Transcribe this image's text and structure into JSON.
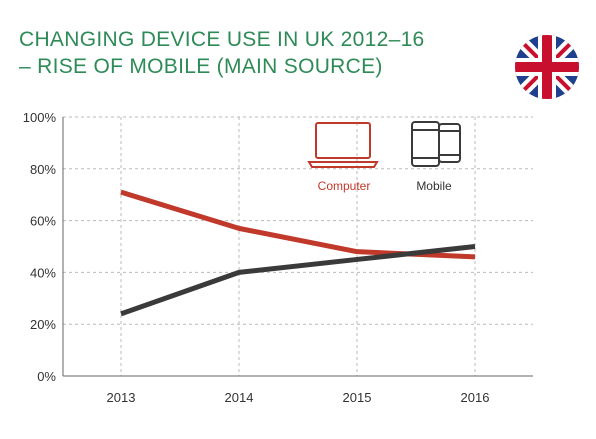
{
  "title": {
    "line1": "CHANGING DEVICE USE IN UK 2012–16",
    "line2": "– RISE OF MOBILE (MAIN SOURCE)"
  },
  "flag_icon": "uk-flag-icon",
  "colors": {
    "title": "#2e8b57",
    "computer": "#c0392b",
    "mobile": "#3a3a3a",
    "grid": "#bbbbbb"
  },
  "chart_data": {
    "type": "line",
    "x": [
      "2013",
      "2014",
      "2015",
      "2016"
    ],
    "ylim": [
      0,
      100
    ],
    "yticks": [
      0,
      20,
      40,
      60,
      80,
      100
    ],
    "ytick_labels": [
      "0%",
      "20%",
      "40%",
      "60%",
      "80%",
      "100%"
    ],
    "grid": true,
    "legend_position": "top-right",
    "series": [
      {
        "name": "Computer",
        "icon": "laptop-icon",
        "color": "#c0392b",
        "values": [
          71,
          57,
          48,
          46
        ]
      },
      {
        "name": "Mobile",
        "icon": "mobile-tablet-icon",
        "color": "#3a3a3a",
        "values": [
          24,
          40,
          45,
          50
        ]
      }
    ]
  }
}
